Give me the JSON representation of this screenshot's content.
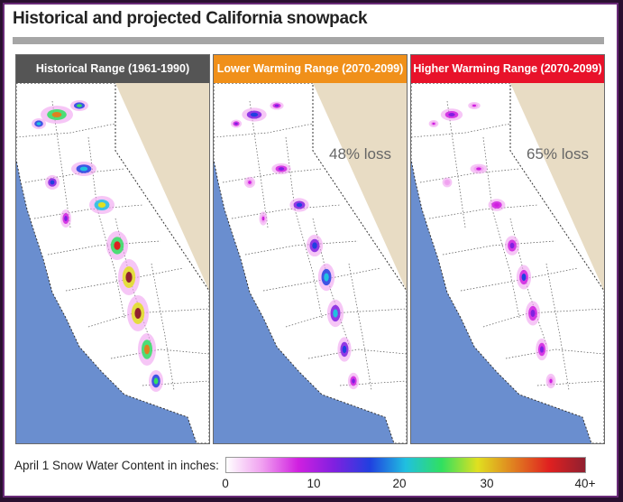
{
  "title": "Historical and projected California snowpack",
  "panels": [
    {
      "label": "Historical Range (1961-1990)",
      "color": "#555555",
      "loss": "",
      "scale": 1.0
    },
    {
      "label": "Lower Warming Range (2070-2099)",
      "color": "#f0901a",
      "loss": "48% loss",
      "scale": 0.52
    },
    {
      "label": "Higher Warming Range (2070-2099)",
      "color": "#e8122a",
      "loss": "65% loss",
      "scale": 0.35
    }
  ],
  "legend": {
    "label": "April 1 Snow Water Content in inches:",
    "ticks": [
      "0",
      "10",
      "20",
      "30",
      "40+"
    ],
    "tick_values": [
      0,
      10,
      20,
      30,
      40
    ],
    "colors": [
      "#ffffff",
      "#f0a0f0",
      "#d020e0",
      "#8020e0",
      "#2040e0",
      "#20c0e0",
      "#30e060",
      "#e0e020",
      "#e08020",
      "#e02020",
      "#902030"
    ]
  },
  "colors": {
    "ocean": "#6a8ecf",
    "land": "#ffffff",
    "neighbor": "#e8dcc4",
    "border": "#333333"
  }
}
